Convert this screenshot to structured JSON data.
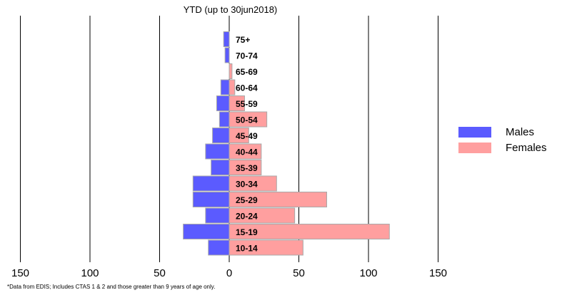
{
  "chart_data": {
    "type": "bar",
    "orientation": "horizontal-population-pyramid",
    "title": "YTD (up to 30jun2018)",
    "categories": [
      "10-14",
      "15-19",
      "20-24",
      "25-29",
      "30-34",
      "35-39",
      "40-44",
      "45-49",
      "50-54",
      "55-59",
      "60-64",
      "65-69",
      "70-74",
      "75+"
    ],
    "series": [
      {
        "name": "Males",
        "color": "#5b5bff",
        "direction": "left",
        "values": [
          15,
          33,
          17,
          26,
          26,
          13,
          17,
          12,
          7,
          9,
          6,
          0,
          3,
          4
        ]
      },
      {
        "name": "Females",
        "color": "#ff9f9f",
        "direction": "right",
        "values": [
          53,
          115,
          47,
          70,
          34,
          23,
          23,
          14,
          27,
          11,
          4,
          2,
          0,
          0
        ]
      }
    ],
    "xaxis_ticks": [
      "150",
      "100",
      "50",
      "0",
      "50",
      "100",
      "150"
    ],
    "xlim": [
      -150,
      150
    ],
    "xlabel": "",
    "ylabel": "",
    "grid": "vertical lines at every 50",
    "legend_position": "right"
  },
  "footnote": "*Data from EDIS; Includes CTAS 1 & 2 and those greater than 9 years of age only.",
  "legend": [
    {
      "label": "Males",
      "color": "#5b5bff"
    },
    {
      "label": "Females",
      "color": "#ff9f9f"
    }
  ]
}
